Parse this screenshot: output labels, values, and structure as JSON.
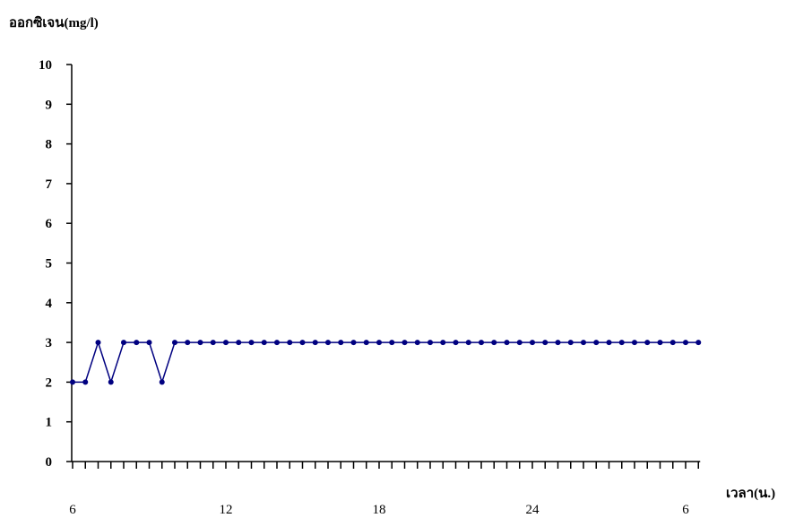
{
  "chart_data": {
    "type": "line",
    "ylabel": "ออกซิเจน(mg/l)",
    "xlabel": "เวลา(น.)",
    "ylim": [
      0,
      10
    ],
    "y_ticks": [
      "0",
      "1",
      "2",
      "3",
      "4",
      "5",
      "6",
      "7",
      "8",
      "9",
      "10"
    ],
    "x_tick_labels": [
      "6",
      "12",
      "18",
      "24",
      "6"
    ],
    "x_tick_label_index": [
      0,
      12,
      24,
      36,
      48
    ],
    "grid": false,
    "series": [
      {
        "color": "#000080",
        "marker": "circle",
        "values": [
          2,
          2,
          3,
          2,
          3,
          3,
          3,
          2,
          3,
          3,
          3,
          3,
          3,
          3,
          3,
          3,
          3,
          3,
          3,
          3,
          3,
          3,
          3,
          3,
          3,
          3,
          3,
          3,
          3,
          3,
          3,
          3,
          3,
          3,
          3,
          3,
          3,
          3,
          3,
          3,
          3,
          3,
          3,
          3,
          3,
          3,
          3,
          3,
          3,
          3
        ]
      }
    ]
  }
}
